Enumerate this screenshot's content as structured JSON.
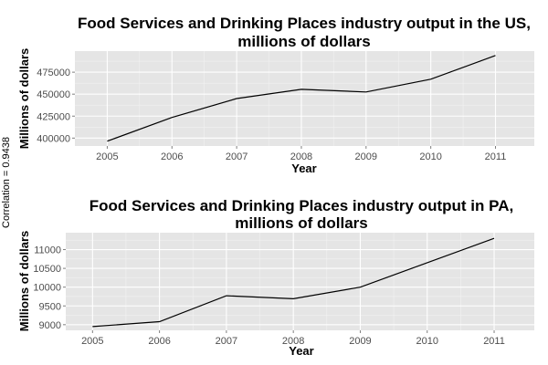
{
  "note": "Correlation = 0.9438",
  "chart_data": [
    {
      "type": "line",
      "title_lines": [
        "Food Services and Drinking Places industry output in the US,",
        "millions of dollars"
      ],
      "xlabel": "Year",
      "ylabel": "Millions of dollars",
      "x": [
        2005,
        2006,
        2007,
        2008,
        2009,
        2010,
        2011
      ],
      "values": [
        396500,
        423500,
        445000,
        455500,
        452500,
        467000,
        494000
      ],
      "xlim": [
        2004.5,
        2011.6
      ],
      "ylim": [
        391000,
        499000
      ],
      "yticks": [
        400000,
        425000,
        450000,
        475000
      ],
      "ytick_labels": [
        "400000",
        "425000",
        "450000",
        "475000"
      ],
      "xtick_labels": [
        "2005",
        "2006",
        "2007",
        "2008",
        "2009",
        "2010",
        "2011"
      ],
      "grid": true,
      "line_color": "#000000"
    },
    {
      "type": "line",
      "title_lines": [
        "Food Services and Drinking Places industry output in PA,",
        "millions of dollars"
      ],
      "xlabel": "Year",
      "ylabel": "Millions of dollars",
      "x": [
        2005,
        2006,
        2007,
        2008,
        2009,
        2010,
        2011
      ],
      "values": [
        8950,
        9080,
        9770,
        9690,
        10000,
        10650,
        11300
      ],
      "xlim": [
        2004.6,
        2011.6
      ],
      "ylim": [
        8850,
        11450
      ],
      "yticks": [
        9000,
        9500,
        10000,
        10500,
        11000
      ],
      "ytick_labels": [
        "9000",
        "9500",
        "10000",
        "10500",
        "11000"
      ],
      "xtick_labels": [
        "2005",
        "2006",
        "2007",
        "2008",
        "2009",
        "2010",
        "2011"
      ],
      "grid": true,
      "line_color": "#000000"
    }
  ]
}
